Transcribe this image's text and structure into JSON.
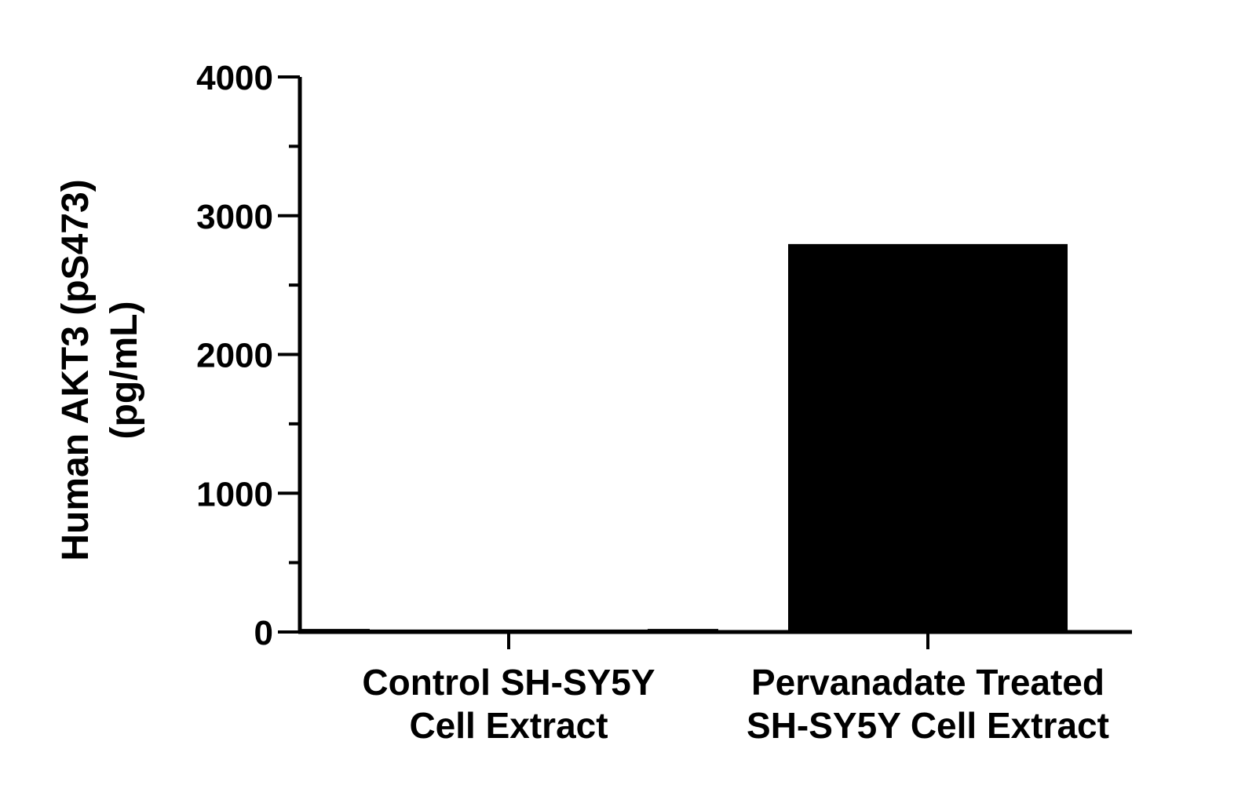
{
  "chart_data": {
    "type": "bar",
    "categories": [
      [
        "Control SH-SY5Y",
        "Cell Extract"
      ],
      [
        "Pervanadate Treated",
        "SH-SY5Y Cell Extract"
      ]
    ],
    "values": [
      12,
      2790
    ],
    "error_bars": [
      {
        "low": 5,
        "high": 19
      },
      null
    ],
    "title": "",
    "xlabel": "",
    "ylabel": [
      "Human AKT3 (pS473)",
      "(pg/mL)"
    ],
    "ylim": [
      0,
      4000
    ],
    "yticks": [
      0,
      1000,
      2000,
      3000,
      4000
    ],
    "ytick_labels": [
      "0",
      "1000",
      "2000",
      "3000",
      "4000"
    ],
    "minor_ticks_between_major": 1,
    "grid": false,
    "legend": "none",
    "colors": {
      "bar_fill": "#000000",
      "bar_outline": "#000000",
      "axis": "#000000",
      "background": "#ffffff"
    }
  }
}
